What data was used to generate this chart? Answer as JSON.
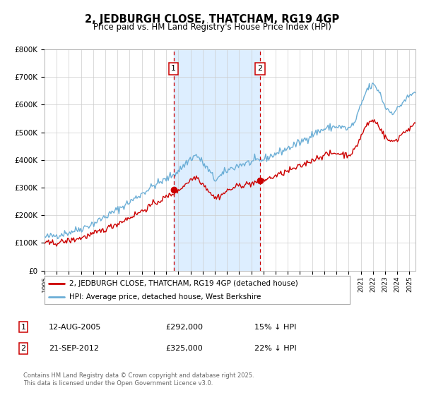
{
  "title": "2, JEDBURGH CLOSE, THATCHAM, RG19 4GP",
  "subtitle": "Price paid vs. HM Land Registry's House Price Index (HPI)",
  "legend_line1": "2, JEDBURGH CLOSE, THATCHAM, RG19 4GP (detached house)",
  "legend_line2": "HPI: Average price, detached house, West Berkshire",
  "sale1_date": "12-AUG-2005",
  "sale1_price": "£292,000",
  "sale1_hpi": "15% ↓ HPI",
  "sale1_year": 2005.62,
  "sale1_value": 292000,
  "sale2_date": "21-SEP-2012",
  "sale2_price": "£325,000",
  "sale2_hpi": "22% ↓ HPI",
  "sale2_year": 2012.72,
  "sale2_value": 325000,
  "hpi_color": "#6baed6",
  "price_color": "#cc0000",
  "shade_color": "#ddeeff",
  "vline_color": "#cc0000",
  "background_color": "#ffffff",
  "grid_color": "#cccccc",
  "footer": "Contains HM Land Registry data © Crown copyright and database right 2025.\nThis data is licensed under the Open Government Licence v3.0.",
  "ylim_min": 0,
  "ylim_max": 800000,
  "xlim_min": 1995,
  "xlim_max": 2025.5
}
